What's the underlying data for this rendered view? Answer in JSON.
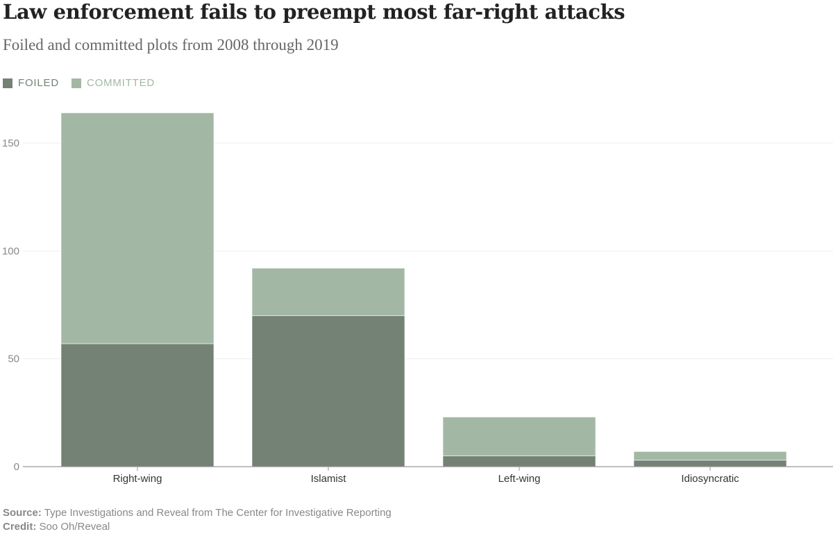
{
  "chart_data": {
    "type": "bar",
    "stacked": true,
    "title": "Law enforcement fails to preempt most far-right attacks",
    "subtitle": "Foiled and committed plots from 2008 through 2019",
    "categories": [
      "Right-wing",
      "Islamist",
      "Left-wing",
      "Idiosyncratic"
    ],
    "series": [
      {
        "name": "FOILED",
        "color": "#748275",
        "values": [
          57,
          70,
          5,
          3
        ]
      },
      {
        "name": "COMMITTED",
        "color": "#a3b8a4",
        "values": [
          107,
          22,
          18,
          4
        ]
      }
    ],
    "xlabel": "",
    "ylabel": "",
    "ylim": [
      0,
      170
    ],
    "yticks": [
      0,
      50,
      100,
      150
    ],
    "grid": true,
    "legend_position": "top-left"
  },
  "footer": {
    "source_label": "Source:",
    "source_text": "Type Investigations and Reveal from The Center for Investigative Reporting",
    "credit_label": "Credit:",
    "credit_text": "Soo Oh/Reveal"
  }
}
